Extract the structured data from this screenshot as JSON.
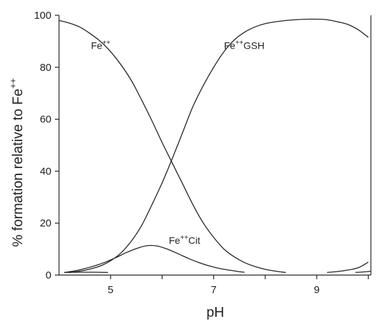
{
  "chart_data": {
    "type": "line",
    "xlabel": "pH",
    "ylabel_main": "% formation relative to Fe",
    "ylabel_sup": "++",
    "xlim": [
      4.0,
      10.05
    ],
    "ylim": [
      0,
      100
    ],
    "x_ticks": [
      5,
      7,
      9
    ],
    "y_ticks": [
      0,
      20,
      40,
      60,
      80,
      100
    ],
    "grid": false,
    "legend": "none",
    "series": [
      {
        "name": "Fe++",
        "label_base": "Fe",
        "label_sup": "++",
        "label_x": 4.62,
        "label_y": 87,
        "x": [
          4.0,
          4.2,
          4.4,
          4.6,
          4.8,
          5.0,
          5.2,
          5.4,
          5.6,
          5.8,
          6.0,
          6.2,
          6.4,
          6.6,
          6.8,
          7.0,
          7.2,
          7.4,
          7.6,
          7.8,
          8.0,
          8.2,
          8.4
        ],
        "y": [
          98,
          97,
          95.5,
          93,
          90,
          86,
          81,
          75,
          67.5,
          59.5,
          51,
          43,
          35,
          27,
          20,
          14.5,
          10,
          7,
          4.8,
          3.3,
          2.2,
          1.5,
          1.0
        ]
      },
      {
        "name": "Fe++GSH",
        "label_base": "Fe",
        "label_sup": "++",
        "label_tail": "GSH",
        "label_x": 7.2,
        "label_y": 87,
        "x": [
          4.2,
          4.4,
          4.6,
          4.8,
          5.0,
          5.2,
          5.4,
          5.6,
          5.8,
          6.0,
          6.2,
          6.4,
          6.6,
          6.8,
          7.0,
          7.2,
          7.4,
          7.6,
          7.8,
          8.0,
          8.2,
          8.4,
          8.6,
          8.8,
          9.0,
          9.2,
          9.4,
          9.6,
          9.8,
          10.0
        ],
        "y": [
          1.0,
          1.5,
          2.3,
          3.5,
          5.5,
          8.5,
          13,
          19,
          27,
          35.5,
          45,
          55,
          65,
          73,
          80,
          86,
          90.5,
          93.5,
          95.5,
          96.8,
          97.5,
          98,
          98.3,
          98.5,
          98.5,
          98.3,
          97.5,
          96.5,
          94.5,
          91.5
        ]
      },
      {
        "name": "Fe++Cit",
        "label_base": "Fe",
        "label_sup": "++",
        "label_tail": "Cit",
        "label_x": 6.13,
        "label_y": 12,
        "x": [
          4.1,
          4.3,
          4.5,
          4.7,
          4.9,
          5.1,
          5.3,
          5.5,
          5.7,
          5.9,
          6.1,
          6.3,
          6.5,
          6.7,
          6.9,
          7.1,
          7.3,
          7.5,
          7.6
        ],
        "y": [
          1.0,
          1.6,
          2.5,
          3.6,
          5.0,
          6.7,
          8.6,
          10.2,
          11.3,
          11.2,
          10.0,
          8.3,
          6.5,
          4.9,
          3.6,
          2.6,
          1.9,
          1.3,
          1.1
        ]
      },
      {
        "name": "baseline-left",
        "x": [
          4.1,
          4.4,
          4.7,
          4.95
        ],
        "y": [
          1.0,
          1.1,
          1.1,
          1.0
        ]
      },
      {
        "name": "rising-right",
        "x": [
          9.2,
          9.5,
          9.8,
          10.0
        ],
        "y": [
          1.0,
          1.6,
          2.8,
          5.0
        ]
      },
      {
        "name": "baseline-right",
        "x": [
          9.75,
          9.9,
          10.05
        ],
        "y": [
          1.0,
          1.2,
          1.5
        ]
      }
    ]
  }
}
